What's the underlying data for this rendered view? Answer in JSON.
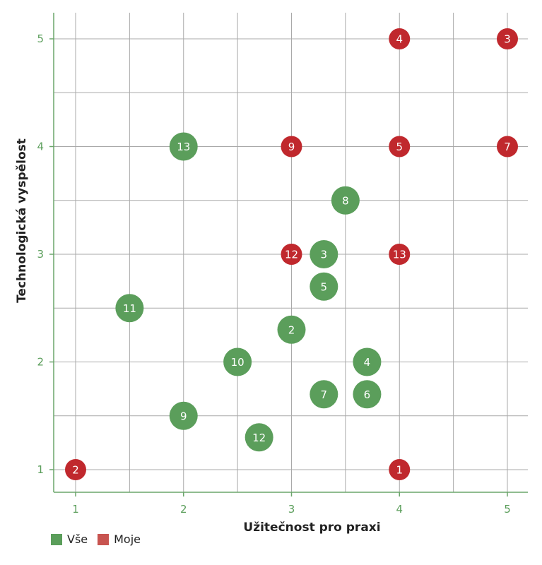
{
  "chart_data": {
    "type": "scatter",
    "title": "",
    "xlabel": "Užitečnost pro praxi",
    "ylabel": "Technologická vyspělost",
    "xlim": [
      0.8,
      5.2
    ],
    "ylim": [
      0.8,
      5.2
    ],
    "x_ticks": [
      1,
      2,
      3,
      4,
      5
    ],
    "y_ticks": [
      1,
      2,
      3,
      4,
      5
    ],
    "grid": true,
    "legend_position": "bottom-left",
    "series": [
      {
        "name": "Vše",
        "color": "#5b9e5b",
        "points": [
          {
            "x": 2,
            "y": 4,
            "label": "13"
          },
          {
            "x": 3.5,
            "y": 3.5,
            "label": "8"
          },
          {
            "x": 3.3,
            "y": 3,
            "label": "3"
          },
          {
            "x": 3.3,
            "y": 2.7,
            "label": "5"
          },
          {
            "x": 1.5,
            "y": 2.5,
            "label": "11"
          },
          {
            "x": 3,
            "y": 2.3,
            "label": "2"
          },
          {
            "x": 2.5,
            "y": 2,
            "label": "10"
          },
          {
            "x": 3.7,
            "y": 2,
            "label": "4"
          },
          {
            "x": 3.3,
            "y": 1.7,
            "label": "7"
          },
          {
            "x": 3.7,
            "y": 1.7,
            "label": "6"
          },
          {
            "x": 2,
            "y": 1.5,
            "label": "9"
          },
          {
            "x": 2.7,
            "y": 1.3,
            "label": "12"
          }
        ]
      },
      {
        "name": "Moje",
        "color": "#c0282d",
        "points": [
          {
            "x": 4,
            "y": 5,
            "label": "4"
          },
          {
            "x": 5,
            "y": 5,
            "label": "3"
          },
          {
            "x": 3,
            "y": 4,
            "label": "9"
          },
          {
            "x": 4,
            "y": 4,
            "label": "5"
          },
          {
            "x": 5,
            "y": 4,
            "label": "7"
          },
          {
            "x": 3,
            "y": 3,
            "label": "12"
          },
          {
            "x": 4,
            "y": 3,
            "label": "13"
          },
          {
            "x": 1,
            "y": 1,
            "label": "2"
          },
          {
            "x": 4,
            "y": 1,
            "label": "1"
          }
        ]
      }
    ]
  },
  "legend": {
    "items": [
      {
        "label": "Vše",
        "color": "#5b9e5b"
      },
      {
        "label": "Moje",
        "color": "#c85450"
      }
    ]
  },
  "colors": {
    "tick_text": "#5b9e5b",
    "grid": "#a9a9a9",
    "axis": "#6aa56a"
  }
}
